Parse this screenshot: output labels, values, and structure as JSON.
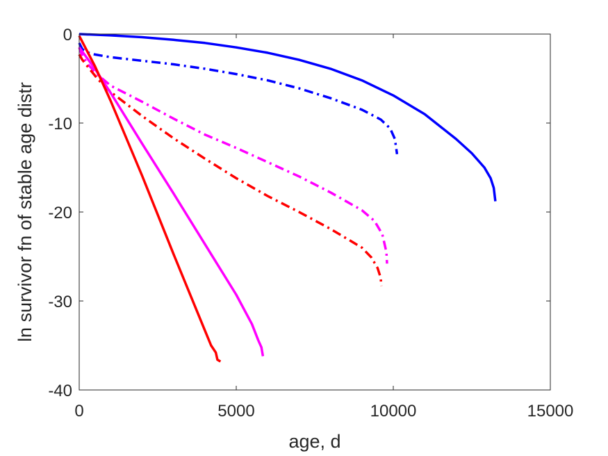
{
  "chart_data": {
    "type": "line",
    "title": "",
    "xlabel": "age, d",
    "ylabel": "ln survivor fn of stable age distr",
    "xlim": [
      0,
      15000
    ],
    "ylim": [
      -40,
      0
    ],
    "xticks": [
      0,
      5000,
      10000,
      15000
    ],
    "xtick_labels": [
      "0",
      "5000",
      "10000",
      "15000"
    ],
    "yticks": [
      0,
      -10,
      -20,
      -30,
      -40
    ],
    "ytick_labels": [
      "0",
      "-10",
      "-20",
      "-30",
      "-40"
    ],
    "grid": false,
    "legend": "none",
    "series": [
      {
        "color": "#0000ff",
        "style": "solid",
        "x": [
          0,
          1000,
          2000,
          3000,
          4000,
          5000,
          6000,
          7000,
          8000,
          9000,
          10000,
          11000,
          12000,
          12500,
          12900,
          13100,
          13200,
          13250
        ],
        "y": [
          0,
          -0.15,
          -0.35,
          -0.65,
          -1.0,
          -1.5,
          -2.1,
          -2.9,
          -3.9,
          -5.2,
          -6.9,
          -9.0,
          -11.8,
          -13.4,
          -15.0,
          -16.2,
          -17.3,
          -18.8
        ]
      },
      {
        "color": "#0000ff",
        "style": "dashdot",
        "x": [
          0,
          100,
          300,
          500,
          1000,
          2000,
          3000,
          4000,
          5000,
          6000,
          7000,
          8000,
          9000,
          9600,
          9900,
          10050,
          10120
        ],
        "y": [
          -1.0,
          -1.7,
          -2.1,
          -2.3,
          -2.6,
          -3.0,
          -3.4,
          -3.9,
          -4.5,
          -5.2,
          -6.1,
          -7.2,
          -8.5,
          -9.6,
          -10.6,
          -11.8,
          -13.5
        ]
      },
      {
        "color": "#ff00ff",
        "style": "dashdot",
        "x": [
          0,
          100,
          300,
          600,
          1000,
          2000,
          3000,
          4000,
          5000,
          6000,
          7000,
          8000,
          9000,
          9400,
          9650,
          9780,
          9800
        ],
        "y": [
          -1.5,
          -2.5,
          -3.5,
          -4.6,
          -5.8,
          -7.6,
          -9.5,
          -11.3,
          -12.8,
          -14.4,
          -16.0,
          -17.8,
          -19.8,
          -21.0,
          -22.5,
          -24.5,
          -25.8
        ]
      },
      {
        "color": "#ff0000",
        "style": "dashdot",
        "x": [
          0,
          100,
          300,
          600,
          1000,
          2000,
          3000,
          4000,
          5000,
          6000,
          7000,
          8000,
          9000,
          9300,
          9500,
          9600,
          9620
        ],
        "y": [
          -2.3,
          -2.9,
          -3.8,
          -5.1,
          -6.5,
          -9.2,
          -11.7,
          -14.0,
          -16.2,
          -18.2,
          -20.0,
          -21.9,
          -24.0,
          -25.1,
          -26.3,
          -27.4,
          -28.3
        ]
      },
      {
        "color": "#ff00ff",
        "style": "solid",
        "x": [
          0,
          500,
          1000,
          2000,
          3000,
          4000,
          5000,
          5500,
          5700,
          5800,
          5850
        ],
        "y": [
          -1.5,
          -3.9,
          -6.6,
          -12.3,
          -17.9,
          -23.6,
          -29.3,
          -32.6,
          -34.4,
          -35.2,
          -36.2
        ]
      },
      {
        "color": "#ff0000",
        "style": "solid",
        "x": [
          0,
          500,
          1000,
          2000,
          3000,
          4000,
          4200,
          4350,
          4400,
          4450,
          4500
        ],
        "y": [
          -0.2,
          -3.6,
          -7.5,
          -15.9,
          -24.7,
          -33.3,
          -35.0,
          -35.8,
          -36.6,
          -36.7,
          -36.8
        ]
      }
    ]
  }
}
